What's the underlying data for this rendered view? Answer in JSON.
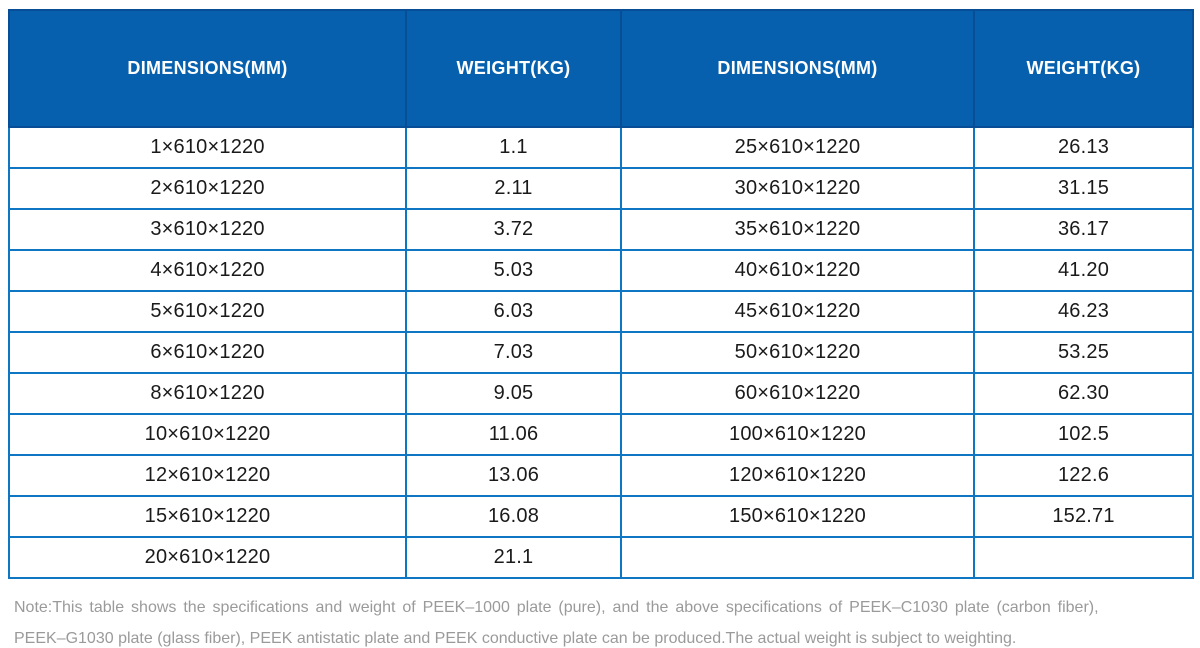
{
  "colors": {
    "header_bg": "#0660ad",
    "header_border": "#084e96",
    "body_border": "#0e76c3",
    "body_text": "#1a1a1a",
    "note_text": "#9a9a9a"
  },
  "table": {
    "columns": [
      {
        "label": "DIMENSIONS(MM)"
      },
      {
        "label": "WEIGHT(KG)"
      },
      {
        "label": "DIMENSIONS(MM)"
      },
      {
        "label": "WEIGHT(KG)"
      }
    ],
    "rows": [
      [
        "1×610×1220",
        "1.1",
        "25×610×1220",
        "26.13"
      ],
      [
        "2×610×1220",
        "2.11",
        "30×610×1220",
        "31.15"
      ],
      [
        "3×610×1220",
        "3.72",
        "35×610×1220",
        "36.17"
      ],
      [
        "4×610×1220",
        "5.03",
        "40×610×1220",
        "41.20"
      ],
      [
        "5×610×1220",
        "6.03",
        "45×610×1220",
        "46.23"
      ],
      [
        "6×610×1220",
        "7.03",
        "50×610×1220",
        "53.25"
      ],
      [
        "8×610×1220",
        "9.05",
        "60×610×1220",
        "62.30"
      ],
      [
        "10×610×1220",
        "11.06",
        "100×610×1220",
        "102.5"
      ],
      [
        "12×610×1220",
        "13.06",
        "120×610×1220",
        "122.6"
      ],
      [
        "15×610×1220",
        "16.08",
        "150×610×1220",
        "152.71"
      ],
      [
        "20×610×1220",
        "21.1",
        "",
        ""
      ]
    ]
  },
  "note": {
    "line1": "Note:This table shows the specifications and weight of PEEK–1000 plate (pure), and the above specifications of PEEK–C1030 plate (carbon fiber),",
    "line2": "PEEK–G1030 plate (glass fiber), PEEK antistatic plate and PEEK conductive plate can be produced.The actual weight is subject to weighting."
  }
}
